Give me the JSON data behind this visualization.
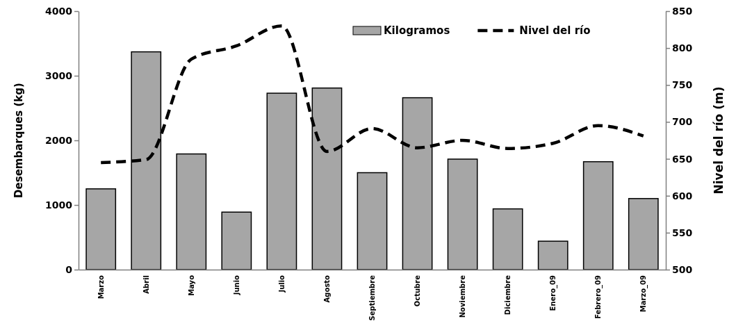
{
  "chart_data": {
    "type": "bar",
    "ylabel": "Desembarques (kg)",
    "y2label": "Nivel del río (m)",
    "categories": [
      "Marzo",
      "Abril",
      "Mayo",
      "Junio",
      "Julio",
      "Agosto",
      "Septiembre",
      "Octubre",
      "Noviembre",
      "Diciembre",
      "Enero_09",
      "Febrero_09",
      "Marzo_09"
    ],
    "series": [
      {
        "name": "Kilogramos",
        "color": "#a6a6a6",
        "values": [
          1250,
          3370,
          1790,
          890,
          2730,
          2810,
          1500,
          2660,
          1710,
          940,
          440,
          1670,
          1100
        ]
      },
      {
        "name": "Nivel del río",
        "type": "line",
        "axis": "y2",
        "color": "#000000",
        "line_style": "dashed",
        "values": [
          645,
          649,
          785,
          803,
          830,
          660,
          691,
          665,
          675,
          664,
          671,
          695,
          681
        ]
      }
    ],
    "ylim": [
      0,
      4000
    ],
    "yticks": [
      0,
      1000,
      2000,
      3000,
      4000
    ],
    "y2lim": [
      500,
      850
    ],
    "y2ticks": [
      500,
      550,
      600,
      650,
      700,
      750,
      800,
      850
    ],
    "grid": false,
    "legend": "top right"
  }
}
